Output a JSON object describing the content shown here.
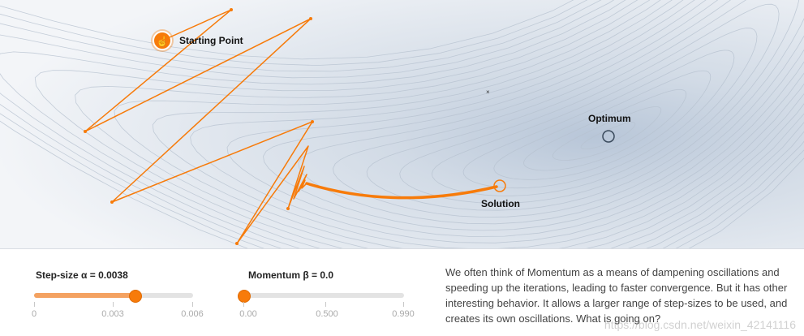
{
  "visualization": {
    "labels": {
      "starting_point": "Starting Point",
      "optimum": "Optimum",
      "solution": "Solution"
    },
    "colors": {
      "path": "#f77b0a",
      "background": "#eef1f5",
      "contour": "#b7c2d0",
      "optimum_marker": "#3a4a5c"
    },
    "icons": {
      "start": "hand-pointer-icon"
    }
  },
  "controls": {
    "step_size": {
      "label": "Step-size α = 0.0038",
      "value": 0.0038,
      "min": 0,
      "max": 0.006,
      "ticks": [
        "0",
        "0.003",
        "0.006"
      ]
    },
    "momentum": {
      "label": "Momentum β = 0.0",
      "value": 0.0,
      "min": 0,
      "max": 0.99,
      "ticks": [
        "0.00",
        "0.500",
        "0.990"
      ]
    }
  },
  "description": "We often think of Momentum as a means of dampening oscillations and speeding up the iterations, leading to faster convergence. But it has other interesting behavior. It allows a larger range of step-sizes to be used, and creates its own oscillations. What is going on?",
  "watermark": "https://blog.csdn.net/weixin_42141116"
}
